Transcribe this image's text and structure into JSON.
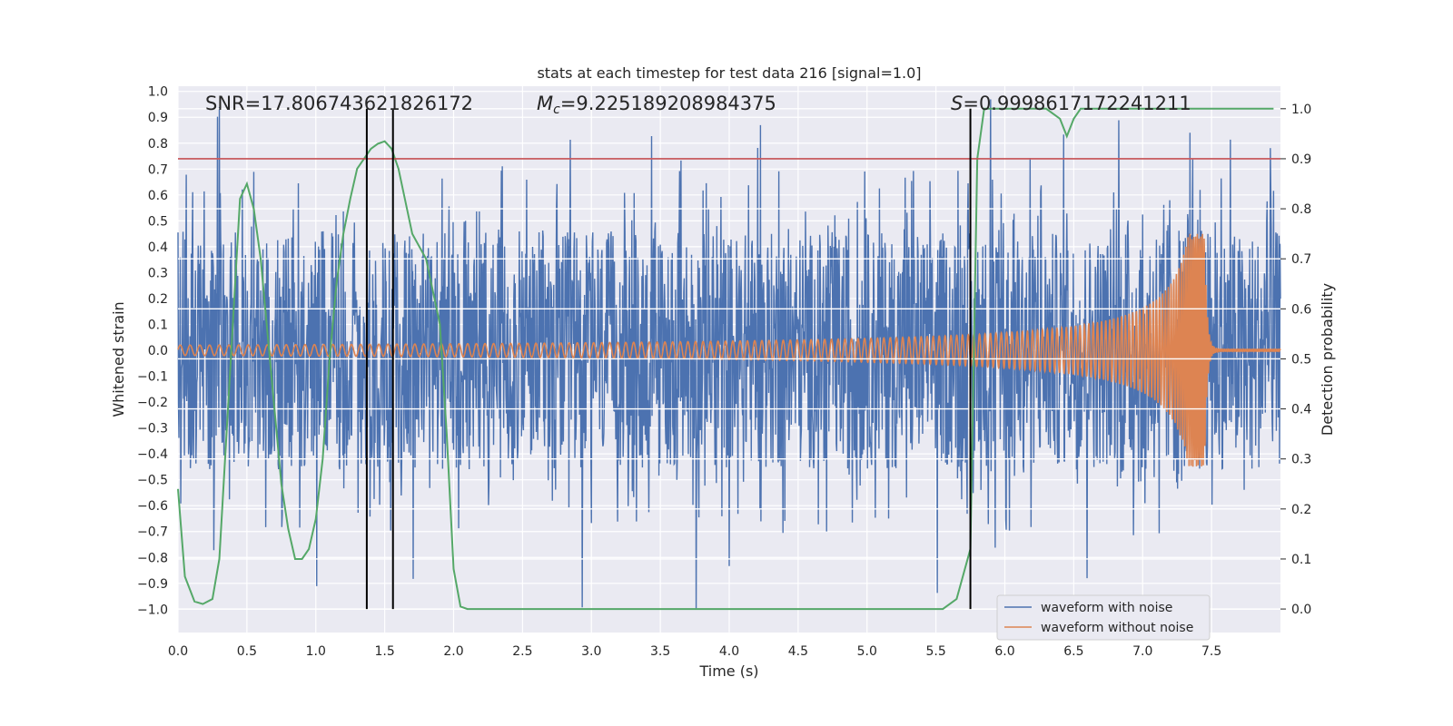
{
  "chart_data": {
    "type": "line",
    "title": "stats at each timestep for test data 216 [signal=1.0]",
    "xlabel": "Time (s)",
    "ylabel": "Whitened strain",
    "y2label": "Detection probability",
    "xlim": [
      0.0,
      8.0
    ],
    "ylim": [
      -1.09,
      1.02
    ],
    "y2lim": [
      -0.047,
      1.045
    ],
    "xticks": [
      "0.0",
      "0.5",
      "1.0",
      "1.5",
      "2.0",
      "2.5",
      "3.0",
      "3.5",
      "4.0",
      "4.5",
      "5.0",
      "5.5",
      "6.0",
      "6.5",
      "7.0",
      "7.5"
    ],
    "yticks": [
      "1.0",
      "0.9",
      "0.8",
      "0.7",
      "0.6",
      "0.5",
      "0.4",
      "0.3",
      "0.2",
      "0.1",
      "0.0",
      "−0.1",
      "−0.2",
      "−0.3",
      "−0.4",
      "−0.5",
      "−0.6",
      "−0.7",
      "−0.8",
      "−0.9",
      "−1.0"
    ],
    "y2ticks": [
      "1.0",
      "0.9",
      "0.8",
      "0.7",
      "0.6",
      "0.5",
      "0.4",
      "0.3",
      "0.2",
      "0.1",
      "0.0"
    ],
    "grid": true,
    "legend_position": "lower-right",
    "annotations": {
      "snr_text": "SNR=17.806743621826172",
      "mc_prefix": "M",
      "mc_sub": "c",
      "mc_value": "=9.225189208984375",
      "s_prefix": "S",
      "s_value": "=0.9998617172241211"
    },
    "series": [
      {
        "name": "waveform with noise",
        "color": "#4c72b0",
        "axis": "left",
        "noise_envelope": 0.46,
        "spike_max": 1.0
      },
      {
        "name": "waveform without noise",
        "color": "#dd8452",
        "axis": "left",
        "chirp": {
          "t_start": 0.0,
          "t_merger": 7.45,
          "amp_start": 0.02,
          "amp_peak": 0.45,
          "freq_start": 14,
          "freq_merger": 80
        }
      },
      {
        "name": "detection probability",
        "color": "#55a868",
        "axis": "right",
        "x": [
          0.0,
          0.05,
          0.12,
          0.18,
          0.25,
          0.3,
          0.35,
          0.45,
          0.5,
          0.55,
          0.6,
          0.65,
          0.7,
          0.75,
          0.8,
          0.85,
          0.9,
          0.95,
          1.0,
          1.05,
          1.1,
          1.15,
          1.2,
          1.25,
          1.3,
          1.35,
          1.4,
          1.45,
          1.5,
          1.55,
          1.6,
          1.7,
          1.8,
          1.9,
          1.95,
          2.0,
          2.05,
          2.1,
          2.2,
          2.5,
          3.0,
          4.0,
          5.0,
          5.55,
          5.65,
          5.75,
          5.8,
          5.85,
          6.0,
          6.3,
          6.4,
          6.45,
          6.5,
          6.55,
          6.6,
          6.7,
          7.0,
          7.5,
          7.95
        ],
        "y": [
          0.24,
          0.065,
          0.015,
          0.01,
          0.02,
          0.1,
          0.34,
          0.82,
          0.85,
          0.8,
          0.7,
          0.55,
          0.4,
          0.25,
          0.16,
          0.1,
          0.1,
          0.12,
          0.18,
          0.3,
          0.5,
          0.65,
          0.75,
          0.82,
          0.88,
          0.9,
          0.92,
          0.93,
          0.935,
          0.92,
          0.88,
          0.75,
          0.7,
          0.57,
          0.35,
          0.08,
          0.005,
          0.0,
          0.0,
          0.0,
          0.0,
          0.0,
          0.0,
          0.0,
          0.02,
          0.12,
          0.9,
          1.0,
          1.0,
          1.0,
          0.98,
          0.945,
          0.98,
          1.0,
          1.0,
          1.0,
          1.0,
          1.0,
          1.0
        ]
      },
      {
        "name": "threshold",
        "color": "#c44e52",
        "axis": "right",
        "y": [
          0.9,
          0.9
        ]
      }
    ],
    "vlines_x": [
      1.37,
      1.56,
      5.75
    ],
    "vline_color": "#000000"
  }
}
